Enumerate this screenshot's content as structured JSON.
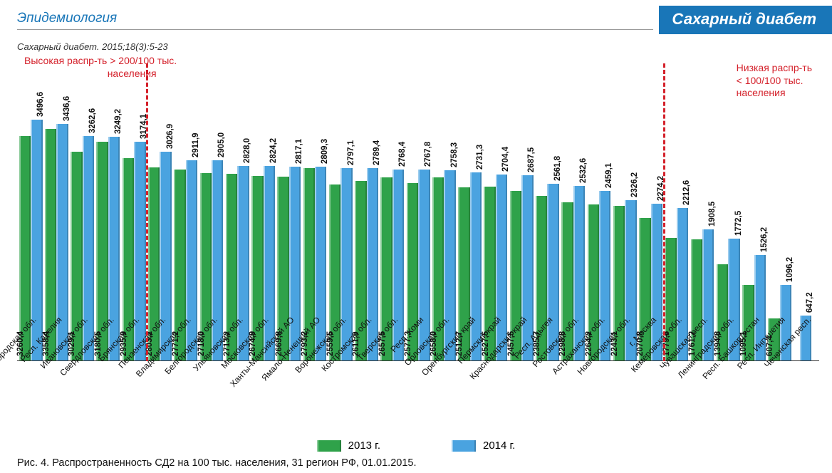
{
  "header": {
    "section_title": "Эпидемиология",
    "journal_badge": "Сахарный диабет",
    "citation": "Сахарный диабет. 2015;18(3):5-23"
  },
  "chart": {
    "type": "bar",
    "y_max": 3600,
    "bar_colors": {
      "y2013": "#2fa24a",
      "y2014": "#4aa3e0"
    },
    "annotation_color": "#d4202a",
    "annot_high": "Высокая распр-ть > 200/100 тыс.\n                              населения",
    "annot_low": "Низкая распр-ть\n< 100/100 тыс.\nнаселения",
    "divider_after_index_high": 4,
    "divider_after_index_low": 24,
    "legend": {
      "y2013": "2013 г.",
      "y2014": "2014 г."
    },
    "caption": "Рис. 4. Распространенность СД2 на 100 тыс. населения, 31 регион РФ, 01.01.2015.",
    "categories": [
      "Нижегородская обл.",
      "Респ. Карелия",
      "Ивановская обл.",
      "Свердловская обл.",
      "Брянская обл.",
      "Пензенская обл.",
      "Владимирская обл.",
      "Белгородская обл.",
      "Ульяновская обл.",
      "Московская обл.",
      "Ханты-Мансийский АО",
      "Ямало-Ненецкий АО",
      "Воронежская обл.",
      "Костромская обл.",
      "Тверская обл.",
      "Респ. Коми",
      "Орловская обл.",
      "Оренбургский край",
      "Пермский край",
      "Краснодарский край",
      "Респ. Адыгея",
      "Ростовская обл.",
      "Астраханская обл.",
      "Новгородская обл.",
      "г. Москва",
      "Кемеровская обл.",
      "Чувашская респ.",
      "Ленинградская обл.",
      "Респ. Башкортостан",
      "Респ. Ингушетия",
      "Чеченская респ."
    ],
    "values_2013": [
      "3260,4",
      "3358,4",
      "3029,1",
      "3180,5",
      "2935,9",
      "2803,2",
      "2771,2",
      "2718,0",
      "2713,2",
      "2674,9",
      "2669,8",
      "2793,2",
      "2559,5",
      "2611,9",
      "2657,5",
      "2577,3",
      "2658,0",
      "2512,7",
      "2527,5",
      "2457,5",
      "2385,7",
      "2298,8",
      "2264,2",
      "2243,1",
      "2070,8",
      "1779,6",
      "1761,2",
      "1394,8",
      "1095,1",
      "607,4",
      ""
    ],
    "values_2014": [
      "3496,6",
      "3436,6",
      "3262,6",
      "3249,2",
      "3174,1",
      "3026,9",
      "2911,9",
      "2905,0",
      "2828,0",
      "2824,2",
      "2817,1",
      "2809,3",
      "2797,1",
      "2789,4",
      "2768,4",
      "2767,8",
      "2758,3",
      "2731,3",
      "2704,4",
      "2687,5",
      "2561,8",
      "2532,6",
      "2459,1",
      "2326,2",
      "2274,2",
      "2212,6",
      "1908,5",
      "1772,5",
      "1526,2",
      "1096,2",
      "647,2"
    ],
    "heights_2013": [
      3260.4,
      3358.4,
      3029.1,
      3180.5,
      2935.9,
      2803.2,
      2771.2,
      2718.0,
      2713.2,
      2674.9,
      2669.8,
      2793.2,
      2559.5,
      2611.9,
      2657.5,
      2577.3,
      2658.0,
      2512.7,
      2527.5,
      2457.5,
      2385.7,
      2298.8,
      2264.2,
      2243.1,
      2070.8,
      1779.6,
      1761.2,
      1394.8,
      1095.1,
      607.4,
      0
    ],
    "heights_2014": [
      3496.6,
      3436.6,
      3262.6,
      3249.2,
      3174.1,
      3026.9,
      2911.9,
      2905.0,
      2828.0,
      2824.2,
      2817.1,
      2809.3,
      2797.1,
      2789.4,
      2768.4,
      2767.8,
      2758.3,
      2731.3,
      2704.4,
      2687.5,
      2561.8,
      2532.6,
      2459.1,
      2326.2,
      2274.2,
      2212.6,
      1908.5,
      1772.5,
      1526.2,
      1096.2,
      647.2
    ]
  }
}
